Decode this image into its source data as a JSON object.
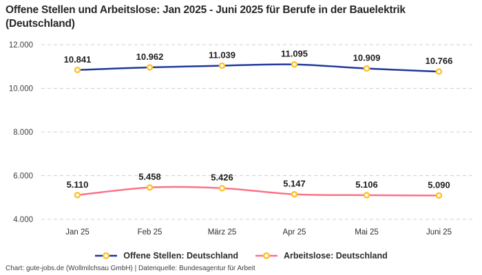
{
  "title": "Offene Stellen und Arbeitslose: Jan 2025 - Juni 2025 für Berufe in der Bauelektrik (Deutschland)",
  "footer": "Chart: gute-jobs.de (Wollmilchsau GmbH) | Datenquelle: Bundesagentur für Arbeit",
  "colors": {
    "open_positions_line": "#1e3799",
    "unemployed_line": "#fb7185",
    "marker_ring": "#fcc42d",
    "marker_fill": "#ffffff",
    "gridline": "#cfcfcf",
    "title_text": "#262626",
    "data_label_text": "#1d1d1d",
    "axis_text": "#3f3f3f"
  },
  "chart_data": {
    "type": "line",
    "categories": [
      "Jan 25",
      "Feb 25",
      "März 25",
      "Apr 25",
      "Mai 25",
      "Juni 25"
    ],
    "series": [
      {
        "name": "Offene Stellen: Deutschland",
        "values": [
          10841,
          10962,
          11039,
          11095,
          10909,
          10766
        ],
        "color": "#1e3799"
      },
      {
        "name": "Arbeitslose: Deutschland",
        "values": [
          5110,
          5458,
          5426,
          5147,
          5106,
          5090
        ],
        "color": "#fb7185"
      }
    ],
    "title": "Offene Stellen und Arbeitslose: Jan 2025 - Juni 2025 für Berufe in der Bauelektrik (Deutschland)",
    "xlabel": "",
    "ylabel": "",
    "ylim": [
      4000,
      12000
    ],
    "ytick_step": 2000,
    "ytick_labels": [
      "4.000",
      "6.000",
      "8.000",
      "10.000",
      "12.000"
    ],
    "grid": "horizontal-dashed",
    "legend_position": "bottom",
    "markers": "circle-yellow-ring-white-fill",
    "data_labels": true,
    "number_format": "de-DE"
  }
}
